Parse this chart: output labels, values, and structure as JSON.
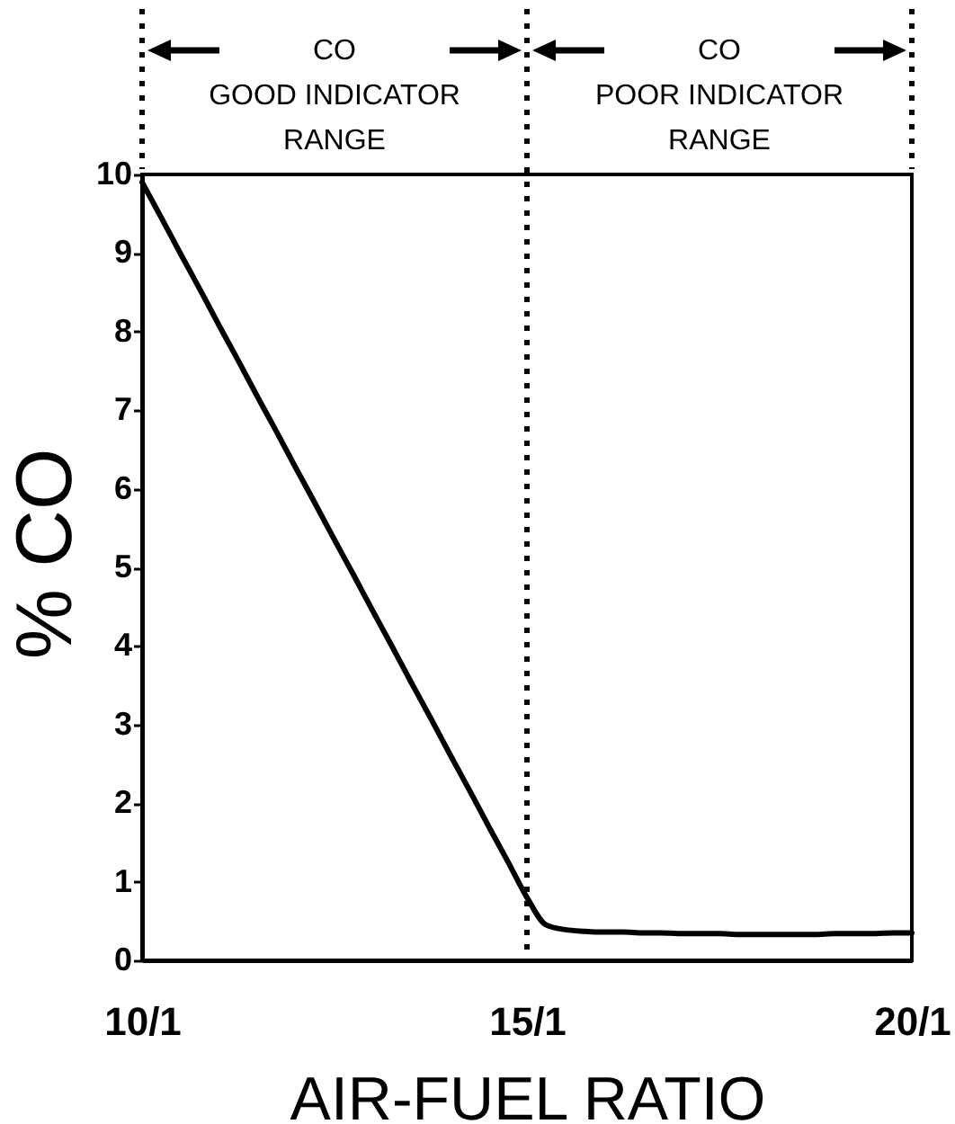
{
  "chart_data": {
    "type": "line",
    "xlabel": "AIR-FUEL RATIO",
    "ylabel": "% CO",
    "categories": [
      "10/1",
      null,
      null,
      null,
      null,
      null,
      null,
      null,
      null,
      null,
      null,
      null,
      null,
      null,
      null,
      null,
      null,
      null,
      null,
      null,
      "15/1",
      null,
      null,
      null,
      null,
      null,
      null,
      null,
      null,
      null,
      null,
      null,
      null,
      null,
      null,
      null,
      null,
      null,
      null,
      null,
      "20/1"
    ],
    "series": [
      {
        "color": "#000000",
        "values": [
          9.9,
          9.45,
          8.99,
          8.54,
          8.08,
          7.63,
          7.17,
          6.72,
          6.26,
          5.81,
          5.35,
          4.9,
          4.44,
          3.99,
          3.53,
          3.08,
          2.62,
          2.17,
          1.71,
          1.26,
          0.8,
          0.45,
          0.39,
          0.37,
          0.36,
          0.36,
          0.35,
          0.35,
          0.34,
          0.34,
          0.34,
          0.33,
          0.33,
          0.33,
          0.33,
          0.33,
          0.34,
          0.34,
          0.34,
          0.35,
          0.35
        ]
      }
    ],
    "ylim": [
      0,
      10
    ],
    "yticks": [
      0,
      1,
      2,
      3,
      4,
      5,
      6,
      7,
      8,
      9,
      10
    ],
    "ref_lines": [
      {
        "axis": "x",
        "value": "15/1",
        "line_style": "dotted"
      }
    ],
    "annotations": [
      "CO\nGOOD INDICATOR\nRANGE",
      "CO\nPOOR INDICATOR\nRANGE"
    ]
  }
}
